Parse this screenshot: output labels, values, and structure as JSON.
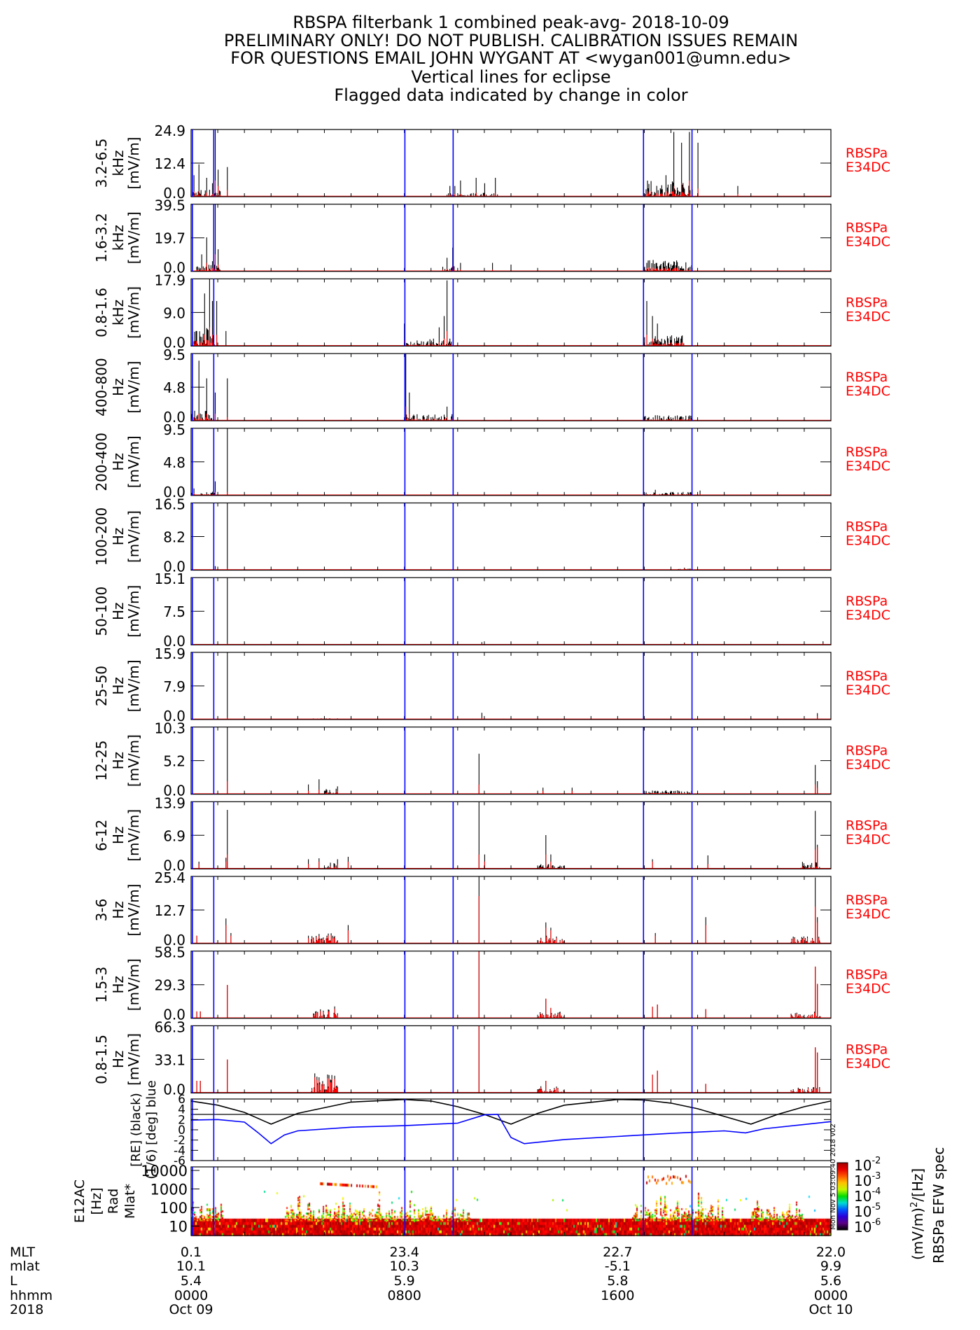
{
  "title_lines": [
    "RBSPA filterbank 1 combined peak-avg- 2018-10-09",
    "PRELIMINARY ONLY! DO NOT PUBLISH. CALIBRATION ISSUES REMAIN",
    "FOR QUESTIONS EMAIL JOHN WYGANT AT <wygan001@umn.edu>",
    "Vertical lines for eclipse",
    "Flagged data indicated by change in color"
  ],
  "right_label": [
    "RBSPa",
    "E34DC"
  ],
  "colors": {
    "peak": "#000000",
    "avg": "#ff0000",
    "eclipse": "#0000ff",
    "right_label": "#ff0000",
    "rad": "#000000",
    "mlat": "#0000ff"
  },
  "eclipse_hours": [
    0.05,
    0.85,
    8.02,
    9.83,
    16.97,
    18.79
  ],
  "chart_data": [
    {
      "type": "bar",
      "band": "3.2-6.5",
      "unit": "kHz",
      "ylabel": "[mV/m]",
      "ticks": [
        "24.9",
        "12.4",
        "0.0"
      ],
      "ylim": [
        0,
        24.9
      ],
      "xlim_hours": [
        0,
        24
      ],
      "spikes": [
        [
          0.1,
          8,
          2
        ],
        [
          0.3,
          12,
          2
        ],
        [
          0.6,
          7,
          1.5
        ],
        [
          0.8,
          5,
          1
        ],
        [
          0.9,
          24.9,
          6
        ],
        [
          1.0,
          10,
          4
        ],
        [
          1.35,
          11,
          2.5
        ],
        [
          9.7,
          4,
          1
        ],
        [
          9.9,
          4,
          1
        ],
        [
          10.1,
          6,
          1
        ],
        [
          10.7,
          7,
          1.5
        ],
        [
          11.0,
          5,
          1
        ],
        [
          11.4,
          7,
          1.5
        ],
        [
          17.8,
          8,
          2
        ],
        [
          18.1,
          24,
          4
        ],
        [
          18.4,
          20,
          5
        ],
        [
          18.7,
          24,
          6
        ],
        [
          19.0,
          20,
          3
        ],
        [
          20.5,
          4,
          1
        ]
      ],
      "active": [
        [
          0,
          1.1,
          3
        ],
        [
          9.6,
          11.5,
          1.5
        ],
        [
          17.0,
          18.8,
          6
        ]
      ]
    },
    {
      "type": "bar",
      "band": "1.6-3.2",
      "unit": "kHz",
      "ylabel": "[mV/m]",
      "ticks": [
        "39.5",
        "19.7",
        "0.0"
      ],
      "ylim": [
        0,
        39.5
      ],
      "spikes": [
        [
          0.4,
          10,
          2
        ],
        [
          0.6,
          20,
          5
        ],
        [
          0.8,
          6,
          2
        ],
        [
          0.9,
          39.5,
          10
        ],
        [
          1.0,
          13,
          4
        ],
        [
          9.6,
          8,
          1.5
        ],
        [
          9.8,
          14,
          3
        ],
        [
          10.1,
          5,
          1
        ],
        [
          11.3,
          5,
          1
        ],
        [
          12.0,
          4,
          1
        ]
      ],
      "active": [
        [
          0.2,
          1.1,
          4
        ],
        [
          9.4,
          9.9,
          3
        ],
        [
          17.0,
          18.8,
          7
        ]
      ]
    },
    {
      "type": "bar",
      "band": "0.8-1.6",
      "unit": "kHz",
      "ylabel": "[mV/m]",
      "ticks": [
        "17.9",
        "9.0",
        "0.0"
      ],
      "ylim": [
        0,
        17.9
      ],
      "spikes": [
        [
          0.2,
          4,
          1
        ],
        [
          0.5,
          14,
          3
        ],
        [
          0.7,
          17.9,
          5
        ],
        [
          0.8,
          12,
          3
        ],
        [
          0.95,
          12,
          3
        ],
        [
          1.3,
          4,
          0
        ],
        [
          8.0,
          6,
          1.5
        ],
        [
          9.3,
          5,
          1
        ],
        [
          9.5,
          8,
          2
        ],
        [
          9.6,
          17.5,
          4
        ],
        [
          17.1,
          12,
          3
        ],
        [
          17.3,
          8,
          2
        ],
        [
          17.5,
          6,
          2
        ]
      ],
      "active": [
        [
          0,
          0.9,
          5
        ],
        [
          8.0,
          9.8,
          2
        ],
        [
          17.0,
          18.5,
          3
        ]
      ]
    },
    {
      "type": "bar",
      "band": "400-800",
      "unit": "Hz",
      "ylabel": "[mV/m]",
      "ticks": [
        "9.5",
        "4.8",
        "0.0"
      ],
      "ylim": [
        0,
        9.5
      ],
      "spikes": [
        [
          0.05,
          3,
          1
        ],
        [
          0.3,
          8.5,
          1
        ],
        [
          0.6,
          6,
          1
        ],
        [
          0.9,
          4,
          1
        ],
        [
          1.35,
          6,
          0.5
        ],
        [
          8.05,
          9.5,
          2
        ],
        [
          8.2,
          4,
          1
        ],
        [
          9.6,
          2,
          0.5
        ]
      ],
      "active": [
        [
          0,
          0.9,
          1.5
        ],
        [
          8.0,
          9.8,
          1
        ],
        [
          17.0,
          18.8,
          0.8
        ]
      ]
    },
    {
      "type": "bar",
      "band": "200-400",
      "unit": "Hz",
      "ylabel": "[mV/m]",
      "ticks": [
        "9.5",
        "4.8",
        "0.0"
      ],
      "ylim": [
        0,
        9.5
      ],
      "spikes": [
        [
          0.1,
          1,
          0.3
        ],
        [
          0.9,
          2,
          0.5
        ],
        [
          1.35,
          9.5,
          0.5
        ],
        [
          17.4,
          0.8,
          0.3
        ],
        [
          19.1,
          0.7,
          0.2
        ]
      ],
      "active": [
        [
          0,
          0.9,
          0.6
        ],
        [
          17,
          18.8,
          0.5
        ]
      ]
    },
    {
      "type": "bar",
      "band": "100-200",
      "unit": "Hz",
      "ylabel": "[mV/m]",
      "ticks": [
        "16.5",
        "8.2",
        "0.0"
      ],
      "ylim": [
        0,
        16.5
      ],
      "spikes": [
        [
          0.9,
          1,
          0.3
        ],
        [
          1.35,
          16.5,
          0.5
        ],
        [
          18.5,
          0.6,
          0.4
        ]
      ],
      "active": [
        [
          18.2,
          18.8,
          0.4
        ]
      ]
    },
    {
      "type": "bar",
      "band": "50-100",
      "unit": "Hz",
      "ylabel": "[mV/m]",
      "ticks": [
        "15.1",
        "7.5",
        "0.0"
      ],
      "ylim": [
        0,
        15.1
      ],
      "spikes": [
        [
          1.35,
          15.1,
          0.3
        ],
        [
          10.9,
          0.6,
          0.2
        ],
        [
          18.5,
          0.5,
          0.3
        ],
        [
          23.7,
          0.8,
          0.3
        ]
      ],
      "active": []
    },
    {
      "type": "bar",
      "band": "25-50",
      "unit": "Hz",
      "ylabel": "[mV/m]",
      "ticks": [
        "15.9",
        "7.9",
        "0.0"
      ],
      "ylim": [
        0,
        15.9
      ],
      "spikes": [
        [
          1.35,
          15.9,
          0.5
        ],
        [
          10.9,
          1.6,
          0.4
        ],
        [
          23.5,
          1.5,
          0.8
        ]
      ],
      "active": [
        [
          4.5,
          6.0,
          0.3
        ]
      ]
    },
    {
      "type": "bar",
      "band": "12-25",
      "unit": "Hz",
      "ylabel": "[mV/m]",
      "ticks": [
        "10.3",
        "5.2",
        "0.0"
      ],
      "ylim": [
        0,
        10.3
      ],
      "spikes": [
        [
          1.35,
          10.3,
          2
        ],
        [
          4.4,
          1.5,
          0.5
        ],
        [
          4.8,
          2.3,
          0.7
        ],
        [
          5.5,
          1.2,
          0.5
        ],
        [
          10.8,
          6.2,
          1.5
        ],
        [
          13.2,
          1,
          0.5
        ],
        [
          14.3,
          1,
          0.5
        ],
        [
          23.4,
          4.5,
          1.5
        ],
        [
          23.5,
          2,
          1
        ]
      ],
      "active": [
        [
          5.0,
          6.1,
          1
        ],
        [
          17.0,
          18.8,
          0.6
        ]
      ]
    },
    {
      "type": "bar",
      "band": "6-12",
      "unit": "Hz",
      "ylabel": "[mV/m]",
      "ticks": [
        "13.9",
        "6.9",
        "0.0"
      ],
      "ylim": [
        0,
        13.9
      ],
      "spikes": [
        [
          0.3,
          1.5,
          1
        ],
        [
          1.3,
          2.3,
          1.5
        ],
        [
          1.35,
          12.2,
          3
        ],
        [
          4.4,
          2,
          1
        ],
        [
          4.8,
          2.2,
          1.5
        ],
        [
          5.5,
          2,
          1
        ],
        [
          5.9,
          2.5,
          1.5
        ],
        [
          10.8,
          13.9,
          3
        ],
        [
          11,
          3,
          1.5
        ],
        [
          13.3,
          7,
          3
        ],
        [
          13.5,
          3,
          1.5
        ],
        [
          17.3,
          2,
          1.5
        ],
        [
          19.4,
          2.8,
          1
        ],
        [
          23.4,
          12,
          4
        ],
        [
          23.5,
          5,
          4.5
        ]
      ],
      "active": [
        [
          5.0,
          6.1,
          1.5
        ],
        [
          13.0,
          14,
          1
        ],
        [
          22.8,
          23.6,
          1.5
        ]
      ]
    },
    {
      "type": "bar",
      "band": "3-6",
      "unit": "Hz",
      "ylabel": "[mV/m]",
      "ticks": [
        "25.4",
        "12.7",
        "0.0"
      ],
      "ylim": [
        0,
        25.4
      ],
      "spikes": [
        [
          0.2,
          3,
          3
        ],
        [
          1.3,
          9.5,
          7
        ],
        [
          1.5,
          4,
          3
        ],
        [
          4.4,
          3,
          2
        ],
        [
          4.8,
          3,
          2
        ],
        [
          5.3,
          3,
          2
        ],
        [
          5.9,
          7,
          5
        ],
        [
          10.8,
          25.4,
          18
        ],
        [
          13.3,
          8,
          6
        ],
        [
          13.5,
          6,
          5
        ],
        [
          17.4,
          4,
          3
        ],
        [
          19.3,
          10,
          7
        ],
        [
          23.4,
          25,
          14
        ],
        [
          23.5,
          10,
          8
        ]
      ],
      "active": [
        [
          4.5,
          6.0,
          4
        ],
        [
          13.0,
          14,
          3
        ],
        [
          22.5,
          23.6,
          3
        ]
      ]
    },
    {
      "type": "bar",
      "band": "1.5-3",
      "unit": "Hz",
      "ylabel": "[mV/m]",
      "ticks": [
        "58.5",
        "29.3",
        "0.0"
      ],
      "ylim": [
        0,
        58.5
      ],
      "spikes": [
        [
          0.2,
          6,
          6
        ],
        [
          0.35,
          6,
          6
        ],
        [
          1.35,
          29,
          29
        ],
        [
          10.8,
          58.5,
          58.5
        ],
        [
          13.3,
          17,
          17
        ],
        [
          13.5,
          9,
          9
        ],
        [
          17.3,
          10,
          10
        ],
        [
          17.5,
          12,
          12
        ],
        [
          19.3,
          8,
          8
        ],
        [
          23.4,
          45,
          45
        ],
        [
          23.5,
          30,
          30
        ]
      ],
      "active": [
        [
          4.5,
          6.0,
          12
        ],
        [
          13.0,
          14,
          7
        ],
        [
          22.5,
          23.6,
          6
        ]
      ]
    },
    {
      "type": "bar",
      "band": "0.8-1.5",
      "unit": "Hz",
      "ylabel": "[mV/m]",
      "ticks": [
        "66.3",
        "33.1",
        "0.0"
      ],
      "ylim": [
        0,
        66.3
      ],
      "spikes": [
        [
          0.2,
          12,
          12
        ],
        [
          0.35,
          12,
          12
        ],
        [
          1.35,
          33,
          33
        ],
        [
          10.8,
          66.3,
          66.3
        ],
        [
          13.3,
          12,
          12
        ],
        [
          17.3,
          18,
          18
        ],
        [
          17.5,
          22,
          22
        ],
        [
          19.3,
          9,
          9
        ],
        [
          23.4,
          45,
          45
        ],
        [
          23.5,
          40,
          40
        ]
      ],
      "active": [
        [
          4.5,
          6.0,
          20
        ],
        [
          13.0,
          14,
          7
        ],
        [
          22.5,
          23.6,
          6
        ]
      ]
    },
    {
      "type": "line",
      "ylabel": [
        "[RE] (black)",
        "(1/6) [deg] blue"
      ],
      "ticks": [
        "6",
        "4",
        "2",
        "0",
        "-2",
        "-4",
        "-6"
      ],
      "ylim": [
        -6,
        6
      ],
      "reference_line": 3.0,
      "series": [
        {
          "color": "#000000",
          "x": [
            0,
            1,
            2,
            3,
            4,
            6,
            8,
            9,
            10,
            11,
            12,
            13,
            14,
            16,
            17,
            18,
            19,
            20,
            21,
            22,
            23,
            24
          ],
          "y": [
            5.6,
            4.8,
            3.4,
            1.1,
            3.2,
            5.4,
            5.9,
            5.6,
            4.5,
            3.0,
            1.1,
            3.2,
            4.8,
            5.9,
            5.8,
            5.2,
            4.1,
            2.6,
            1.1,
            3.0,
            4.5,
            5.6
          ]
        },
        {
          "color": "#0000ff",
          "x": [
            0,
            1,
            2,
            2.5,
            3,
            3.5,
            4,
            6,
            8,
            10,
            11,
            11.5,
            12,
            12.5,
            14,
            16,
            18,
            20,
            20.8,
            21.5,
            24
          ],
          "y": [
            1.9,
            2.0,
            1.5,
            -0.5,
            -2.7,
            -1.0,
            -0.2,
            0.5,
            0.8,
            1.3,
            2.9,
            3.0,
            -1.5,
            -2.7,
            -1.9,
            -1.3,
            -0.7,
            -0.2,
            -0.6,
            0.2,
            1.6
          ]
        }
      ]
    },
    {
      "type": "heatmap",
      "ylabel": [
        "E12AC",
        "[Hz]",
        "Rad",
        "Mlat*"
      ],
      "yticks": [
        "10",
        "100",
        "1000",
        "10000"
      ],
      "yscale": "log",
      "colorbar": {
        "label": [
          "(mV/m)",
          "2",
          "/[Hz]"
        ],
        "ticks": [
          {
            "base": "10",
            "exp": "-2"
          },
          {
            "base": "10",
            "exp": "-3"
          },
          {
            "base": "10",
            "exp": "-4"
          },
          {
            "base": "10",
            "exp": "-5"
          },
          {
            "base": "10",
            "exp": "-6"
          }
        ]
      },
      "title": "RBSPa EFW spec"
    }
  ],
  "timestamp": "Mon Nov 5 03:09:40 2018 v02",
  "x_axis": {
    "row_labels": [
      "MLT",
      "mlat",
      "L",
      "hhmm",
      "2018"
    ],
    "columns": [
      {
        "hour": 0,
        "values": [
          "0.1",
          "10.1",
          "5.4",
          "0000",
          "Oct 09"
        ]
      },
      {
        "hour": 8,
        "values": [
          "23.4",
          "10.3",
          "5.9",
          "0800",
          ""
        ]
      },
      {
        "hour": 16,
        "values": [
          "22.7",
          "-5.1",
          "5.8",
          "1600",
          ""
        ]
      },
      {
        "hour": 24,
        "values": [
          "22.0",
          "9.9",
          "5.6",
          "0000",
          "Oct 10"
        ]
      }
    ]
  }
}
